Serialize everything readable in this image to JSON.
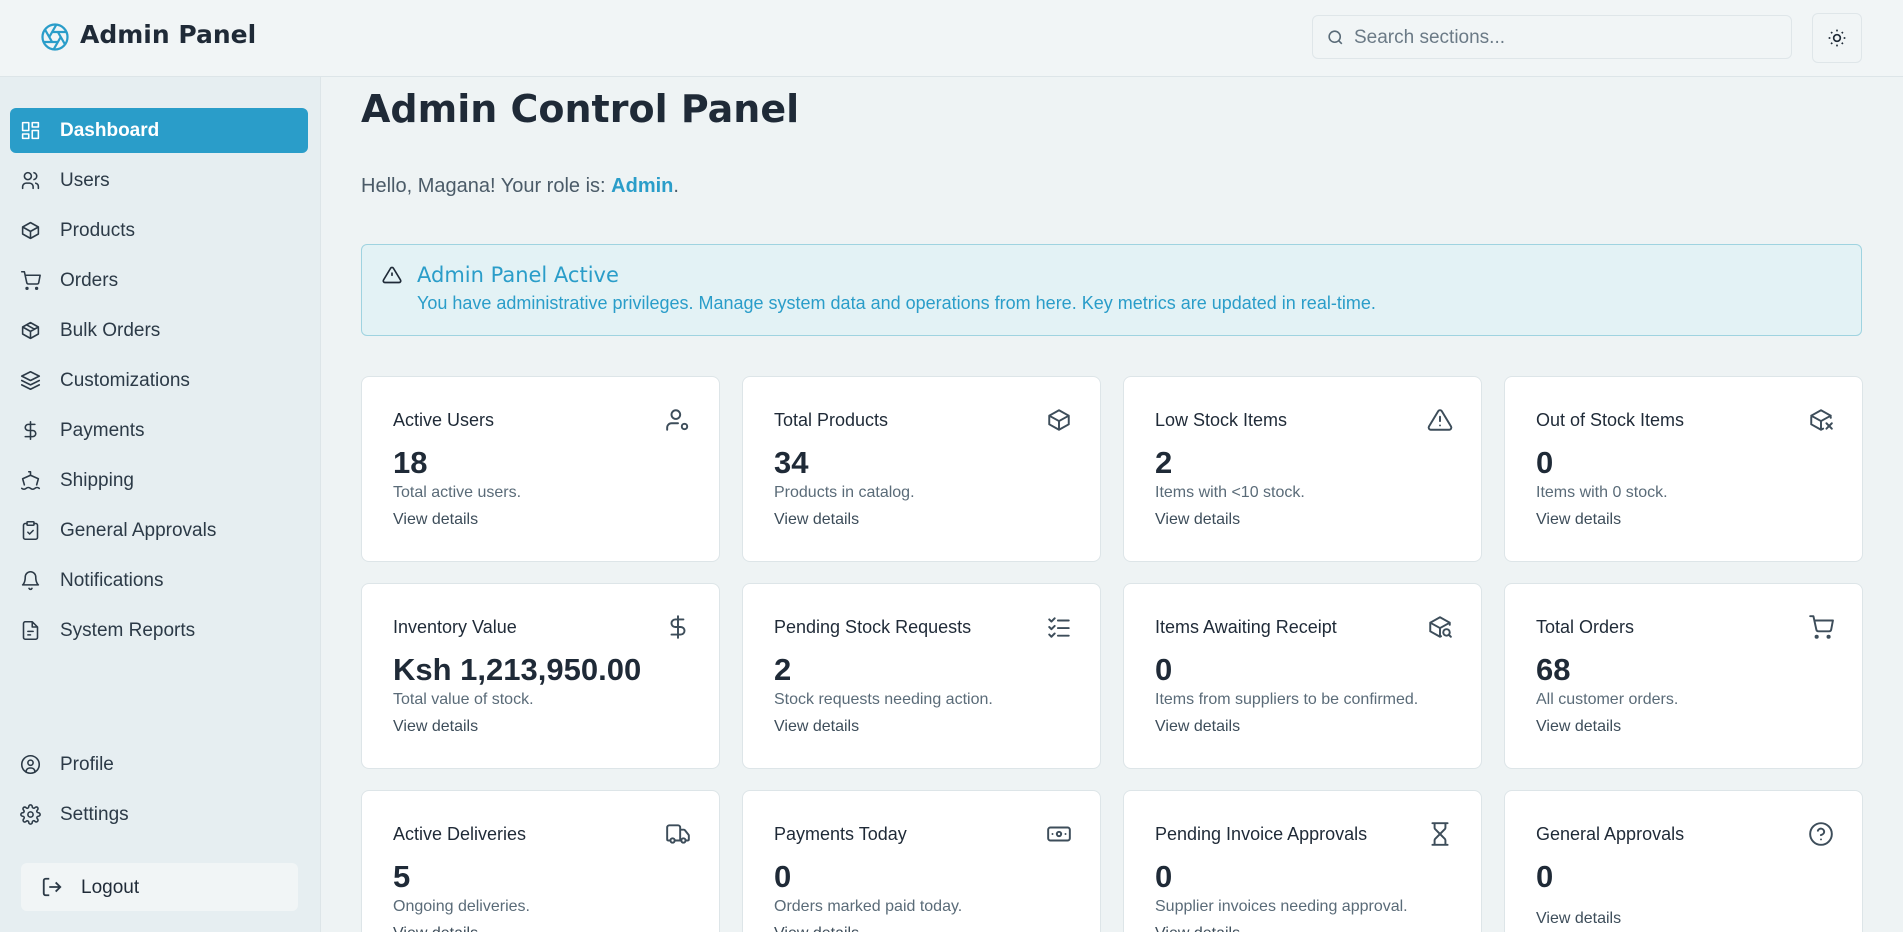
{
  "header": {
    "title": "Admin Panel",
    "search_placeholder": "Search sections..."
  },
  "sidebar": {
    "items": [
      "Dashboard",
      "Users",
      "Products",
      "Orders",
      "Bulk Orders",
      "Customizations",
      "Payments",
      "Shipping",
      "General Approvals",
      "Notifications",
      "System Reports"
    ],
    "bottom_items": [
      "Profile",
      "Settings"
    ],
    "logout": "Logout"
  },
  "main": {
    "title": "Admin Control Panel",
    "greeting": {
      "prefix": "Hello, Magana! Your role is:",
      "role": "Admin",
      "suffix": "."
    },
    "alert": {
      "title": "Admin Panel Active",
      "text": "You have administrative privileges. Manage system data and operations from here. Key metrics are updated in real-time."
    },
    "cards": [
      {
        "title": "Active Users",
        "value": "18",
        "description": "Total active users.",
        "link": "View details"
      },
      {
        "title": "Total Products",
        "value": "34",
        "description": "Products in catalog.",
        "link": "View details"
      },
      {
        "title": "Low Stock Items",
        "value": "2",
        "description": "Items with <10 stock.",
        "link": "View details"
      },
      {
        "title": "Out of Stock Items",
        "value": "0",
        "description": "Items with 0 stock.",
        "link": "View details"
      },
      {
        "title": "Inventory Value",
        "value": "Ksh 1,213,950.00",
        "description": "Total value of stock.",
        "link": "View details"
      },
      {
        "title": "Pending Stock Requests",
        "value": "2",
        "description": "Stock requests needing action.",
        "link": "View details"
      },
      {
        "title": "Items Awaiting Receipt",
        "value": "0",
        "description": "Items from suppliers to be confirmed.",
        "link": "View details"
      },
      {
        "title": "Total Orders",
        "value": "68",
        "description": "All customer orders.",
        "link": "View details"
      },
      {
        "title": "Active Deliveries",
        "value": "5",
        "description": "Ongoing deliveries.",
        "link": "View details"
      },
      {
        "title": "Payments Today",
        "value": "0",
        "description": "Orders marked paid today.",
        "link": "View details"
      },
      {
        "title": "Pending Invoice Approvals",
        "value": "0",
        "description": "Supplier invoices needing approval.",
        "link": "View details"
      },
      {
        "title": "General Approvals",
        "value": "0",
        "link": "View details"
      }
    ]
  }
}
